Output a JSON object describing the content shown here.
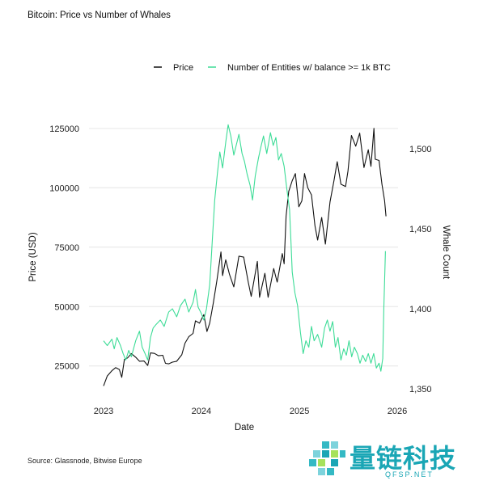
{
  "title": "Bitcoin: Price vs Number of Whales",
  "source": "Source: Glassnode, Bitwise Europe",
  "colors": {
    "price": "#111111",
    "whales": "#3ddc97",
    "grid": "#e6e6e6",
    "watermark": "#1aa6b5"
  },
  "watermark": {
    "text": "量链科技",
    "sub": "QFSP.NET"
  },
  "chart_data": {
    "type": "line",
    "xlabel": "Date",
    "ylabel_left": "Price (USD)",
    "ylabel_right": "Whale Count",
    "x_ticks": [
      "2023",
      "2024",
      "2025",
      "2026"
    ],
    "y_left_ticks": [
      25000,
      50000,
      75000,
      100000,
      125000
    ],
    "y_right_ticks": [
      "1,350",
      "1,400",
      "1,450",
      "1,500"
    ],
    "y_right_tick_values": [
      1350,
      1400,
      1450,
      1500
    ],
    "xlim": [
      "2023-01-01",
      "2026-01-01"
    ],
    "y_left_lim": [
      13000,
      128000
    ],
    "y_right_lim": [
      1350,
      1500
    ],
    "grid": "horizontal",
    "legend_position": "top-right",
    "series": [
      {
        "name": "Price",
        "axis": "left",
        "points": [
          [
            "2023-01-01",
            16600
          ],
          [
            "2023-01-15",
            20800
          ],
          [
            "2023-02-01",
            23000
          ],
          [
            "2023-02-15",
            24300
          ],
          [
            "2023-03-01",
            23500
          ],
          [
            "2023-03-10",
            20200
          ],
          [
            "2023-03-20",
            27800
          ],
          [
            "2023-04-01",
            28400
          ],
          [
            "2023-04-15",
            30200
          ],
          [
            "2023-05-01",
            28700
          ],
          [
            "2023-05-15",
            27000
          ],
          [
            "2023-06-01",
            27100
          ],
          [
            "2023-06-15",
            25200
          ],
          [
            "2023-06-25",
            30500
          ],
          [
            "2023-07-10",
            30300
          ],
          [
            "2023-07-25",
            29300
          ],
          [
            "2023-08-10",
            29500
          ],
          [
            "2023-08-20",
            26100
          ],
          [
            "2023-09-01",
            25900
          ],
          [
            "2023-09-15",
            26600
          ],
          [
            "2023-10-01",
            27000
          ],
          [
            "2023-10-20",
            29700
          ],
          [
            "2023-11-01",
            34600
          ],
          [
            "2023-11-15",
            37300
          ],
          [
            "2023-12-01",
            38700
          ],
          [
            "2023-12-10",
            44000
          ],
          [
            "2023-12-25",
            43000
          ],
          [
            "2024-01-10",
            46600
          ],
          [
            "2024-01-22",
            39500
          ],
          [
            "2024-02-01",
            43000
          ],
          [
            "2024-02-15",
            51800
          ],
          [
            "2024-02-28",
            61000
          ],
          [
            "2024-03-14",
            73000
          ],
          [
            "2024-03-20",
            63000
          ],
          [
            "2024-04-01",
            69700
          ],
          [
            "2024-04-15",
            63500
          ],
          [
            "2024-05-01",
            58300
          ],
          [
            "2024-05-20",
            71200
          ],
          [
            "2024-06-07",
            70800
          ],
          [
            "2024-06-24",
            60200
          ],
          [
            "2024-07-05",
            54300
          ],
          [
            "2024-07-28",
            69000
          ],
          [
            "2024-08-05",
            53900
          ],
          [
            "2024-08-25",
            64000
          ],
          [
            "2024-09-06",
            53900
          ],
          [
            "2024-09-27",
            66000
          ],
          [
            "2024-10-10",
            60300
          ],
          [
            "2024-10-29",
            72300
          ],
          [
            "2024-11-05",
            68000
          ],
          [
            "2024-11-12",
            88000
          ],
          [
            "2024-11-22",
            98500
          ],
          [
            "2024-12-05",
            103000
          ],
          [
            "2024-12-17",
            106000
          ],
          [
            "2024-12-30",
            92000
          ],
          [
            "2025-01-10",
            94500
          ],
          [
            "2025-01-20",
            106000
          ],
          [
            "2025-02-01",
            100000
          ],
          [
            "2025-02-15",
            97000
          ],
          [
            "2025-02-28",
            84000
          ],
          [
            "2025-03-10",
            78000
          ],
          [
            "2025-03-25",
            87500
          ],
          [
            "2025-04-08",
            76300
          ],
          [
            "2025-04-25",
            94000
          ],
          [
            "2025-05-10",
            103000
          ],
          [
            "2025-05-22",
            111000
          ],
          [
            "2025-06-05",
            101500
          ],
          [
            "2025-06-22",
            100500
          ],
          [
            "2025-07-01",
            107000
          ],
          [
            "2025-07-14",
            122000
          ],
          [
            "2025-07-30",
            117500
          ],
          [
            "2025-08-14",
            123000
          ],
          [
            "2025-08-30",
            108500
          ],
          [
            "2025-09-15",
            116000
          ],
          [
            "2025-09-25",
            109000
          ],
          [
            "2025-10-06",
            125000
          ],
          [
            "2025-10-11",
            112000
          ],
          [
            "2025-10-25",
            111500
          ],
          [
            "2025-11-05",
            101500
          ],
          [
            "2025-11-15",
            94500
          ],
          [
            "2025-11-20",
            88000
          ]
        ]
      },
      {
        "name": "Number of Entities w/ balance >= 1k BTC",
        "axis": "right",
        "points": [
          [
            "2023-01-01",
            1380
          ],
          [
            "2023-01-15",
            1377
          ],
          [
            "2023-02-01",
            1381
          ],
          [
            "2023-02-10",
            1375
          ],
          [
            "2023-02-20",
            1382
          ],
          [
            "2023-03-05",
            1377
          ],
          [
            "2023-03-15",
            1372
          ],
          [
            "2023-03-25",
            1368
          ],
          [
            "2023-04-05",
            1374
          ],
          [
            "2023-04-15",
            1370
          ],
          [
            "2023-05-01",
            1380
          ],
          [
            "2023-05-15",
            1386
          ],
          [
            "2023-05-25",
            1376
          ],
          [
            "2023-06-05",
            1372
          ],
          [
            "2023-06-15",
            1368
          ],
          [
            "2023-06-25",
            1382
          ],
          [
            "2023-07-05",
            1388
          ],
          [
            "2023-07-15",
            1390
          ],
          [
            "2023-08-01",
            1393
          ],
          [
            "2023-08-15",
            1389
          ],
          [
            "2023-09-01",
            1398
          ],
          [
            "2023-09-15",
            1400
          ],
          [
            "2023-10-01",
            1395
          ],
          [
            "2023-10-15",
            1402
          ],
          [
            "2023-11-01",
            1406
          ],
          [
            "2023-11-15",
            1398
          ],
          [
            "2023-12-01",
            1404
          ],
          [
            "2023-12-10",
            1412
          ],
          [
            "2023-12-20",
            1401
          ],
          [
            "2024-01-01",
            1397
          ],
          [
            "2024-01-10",
            1393
          ],
          [
            "2024-01-20",
            1400
          ],
          [
            "2024-02-01",
            1415
          ],
          [
            "2024-02-10",
            1440
          ],
          [
            "2024-02-20",
            1468
          ],
          [
            "2024-03-01",
            1485
          ],
          [
            "2024-03-10",
            1498
          ],
          [
            "2024-03-20",
            1488
          ],
          [
            "2024-04-01",
            1504
          ],
          [
            "2024-04-10",
            1515
          ],
          [
            "2024-04-20",
            1508
          ],
          [
            "2024-05-01",
            1496
          ],
          [
            "2024-05-10",
            1502
          ],
          [
            "2024-05-20",
            1509
          ],
          [
            "2024-06-01",
            1497
          ],
          [
            "2024-06-10",
            1492
          ],
          [
            "2024-06-20",
            1484
          ],
          [
            "2024-07-01",
            1477
          ],
          [
            "2024-07-10",
            1468
          ],
          [
            "2024-07-20",
            1483
          ],
          [
            "2024-08-01",
            1494
          ],
          [
            "2024-08-10",
            1501
          ],
          [
            "2024-08-20",
            1508
          ],
          [
            "2024-09-01",
            1497
          ],
          [
            "2024-09-15",
            1510
          ],
          [
            "2024-09-25",
            1502
          ],
          [
            "2024-10-05",
            1507
          ],
          [
            "2024-10-15",
            1493
          ],
          [
            "2024-10-25",
            1497
          ],
          [
            "2024-11-05",
            1489
          ],
          [
            "2024-11-15",
            1475
          ],
          [
            "2024-11-25",
            1462
          ],
          [
            "2024-12-01",
            1440
          ],
          [
            "2024-12-05",
            1423
          ],
          [
            "2024-12-15",
            1410
          ],
          [
            "2024-12-25",
            1402
          ],
          [
            "2025-01-05",
            1385
          ],
          [
            "2025-01-15",
            1372
          ],
          [
            "2025-01-25",
            1380
          ],
          [
            "2025-02-05",
            1376
          ],
          [
            "2025-02-15",
            1389
          ],
          [
            "2025-02-25",
            1380
          ],
          [
            "2025-03-10",
            1384
          ],
          [
            "2025-03-25",
            1376
          ],
          [
            "2025-04-05",
            1388
          ],
          [
            "2025-04-15",
            1393
          ],
          [
            "2025-04-25",
            1386
          ],
          [
            "2025-05-05",
            1392
          ],
          [
            "2025-05-15",
            1376
          ],
          [
            "2025-05-25",
            1382
          ],
          [
            "2025-06-05",
            1368
          ],
          [
            "2025-06-15",
            1375
          ],
          [
            "2025-06-25",
            1371
          ],
          [
            "2025-07-05",
            1380
          ],
          [
            "2025-07-15",
            1370
          ],
          [
            "2025-07-25",
            1376
          ],
          [
            "2025-08-05",
            1372
          ],
          [
            "2025-08-15",
            1366
          ],
          [
            "2025-08-25",
            1371
          ],
          [
            "2025-09-05",
            1367
          ],
          [
            "2025-09-15",
            1372
          ],
          [
            "2025-09-25",
            1366
          ],
          [
            "2025-10-05",
            1372
          ],
          [
            "2025-10-15",
            1363
          ],
          [
            "2025-10-25",
            1366
          ],
          [
            "2025-11-01",
            1361
          ],
          [
            "2025-11-08",
            1369
          ],
          [
            "2025-11-12",
            1400
          ],
          [
            "2025-11-16",
            1425
          ],
          [
            "2025-11-18",
            1436
          ]
        ]
      }
    ]
  }
}
